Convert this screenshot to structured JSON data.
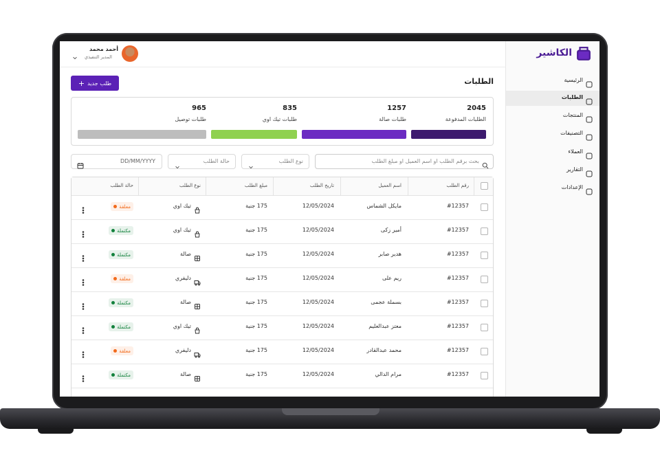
{
  "brand": "الكاشير",
  "nav": [
    {
      "label": "الرئيسية"
    },
    {
      "label": "الطلبات",
      "active": true
    },
    {
      "label": "المنتجات"
    },
    {
      "label": "التصنيفات"
    },
    {
      "label": "العملاء"
    },
    {
      "label": "التقارير"
    },
    {
      "label": "الإعدادات"
    }
  ],
  "user": {
    "name": "أحمد محمد",
    "role": "المدير التنفيذي"
  },
  "page_title": "الطلبات",
  "new_order_button": "طلب جديد",
  "stats": [
    {
      "value": 2045,
      "label": "الطلبات المدفوعة",
      "color": "#3d1a6e"
    },
    {
      "value": 1257,
      "label": "طلبات صالة",
      "color": "#6b2bc2"
    },
    {
      "value": 835,
      "label": "طلبات تيك اوي",
      "color": "#8fd14f"
    },
    {
      "value": 965,
      "label": "طلبات توصيل",
      "color": "#bdbdbd"
    }
  ],
  "filters": {
    "search": "بحث برقم الطلب او اسم العميل او مبلغ الطلب",
    "order_type": "نوع الطلب",
    "order_status": "حالة الطلب",
    "date": "DD/MM/YYYY"
  },
  "table": {
    "headers": [
      "رقم الطلب",
      "اسم العميل",
      "تاريخ الطلب",
      "مبلغ الطلب",
      "نوع الطلب",
      "حالة الطلب"
    ],
    "rows": [
      [
        "#12357",
        "مايكل الشماس",
        "12/05/2024",
        "175 جنية",
        "تيك اوي",
        "معلقة"
      ],
      [
        "#12357",
        "أمير زكى",
        "12/05/2024",
        "175 جنية",
        "تيك اوي",
        "مكتملة"
      ],
      [
        "#12357",
        "هدير صابر",
        "12/05/2024",
        "175 جنية",
        "صالة",
        "مكتملة"
      ],
      [
        "#12357",
        "ريم على",
        "12/05/2024",
        "175 جنية",
        "دليفري",
        "معلقة"
      ],
      [
        "#12357",
        "بسملة عجمى",
        "12/05/2024",
        "175 جنية",
        "صالة",
        "مكتملة"
      ],
      [
        "#12357",
        "معتز عبدالعليم",
        "12/05/2024",
        "175 جنية",
        "تيك اوي",
        "مكتملة"
      ],
      [
        "#12357",
        "محمد عبدالقادر",
        "12/05/2024",
        "175 جنية",
        "دليفري",
        "معلقة"
      ],
      [
        "#12357",
        "مرام الدالي",
        "12/05/2024",
        "175 جنية",
        "صالة",
        "مكتملة"
      ]
    ],
    "status_colors": [
      "#f26a1b",
      "#12813c",
      "#12813c",
      "#f26a1b",
      "#12813c",
      "#12813c",
      "#f26a1b",
      "#12813c"
    ]
  }
}
